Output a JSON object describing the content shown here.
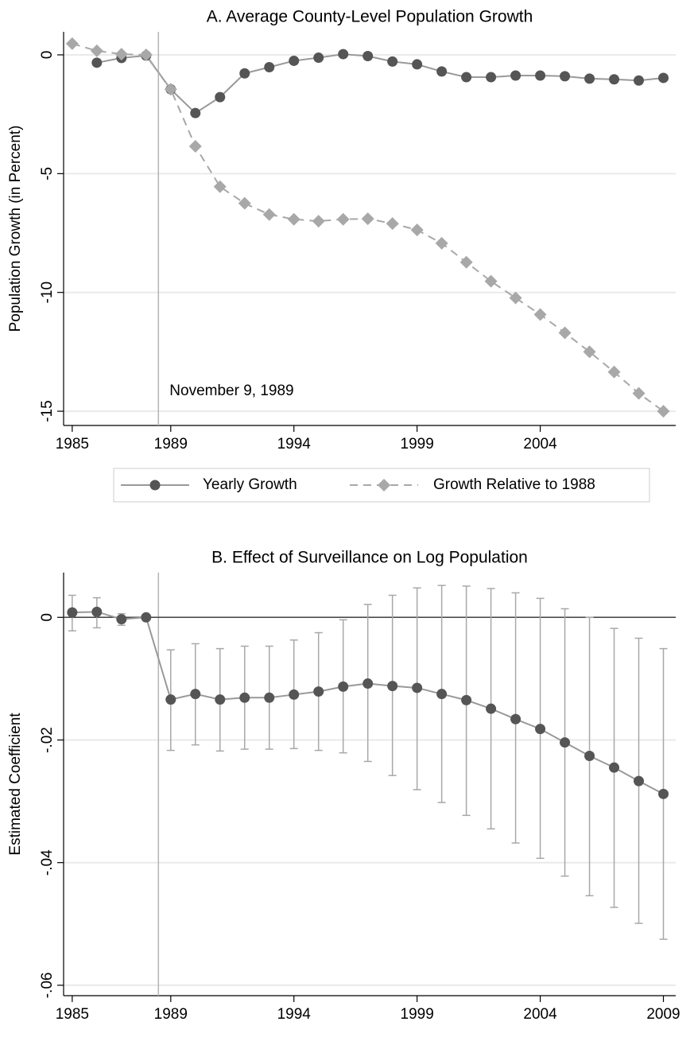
{
  "chart_data": [
    {
      "type": "line",
      "title": "A. Average County-Level Population Growth",
      "ylabel": "Population Growth (in Percent)",
      "x": [
        1985,
        1986,
        1987,
        1988,
        1989,
        1990,
        1991,
        1992,
        1993,
        1994,
        1995,
        1996,
        1997,
        1998,
        1999,
        2000,
        2001,
        2002,
        2003,
        2004,
        2005,
        2006,
        2007,
        2008,
        2009
      ],
      "series": [
        {
          "name": "Yearly Growth",
          "color": "#555555",
          "line_color": "#999999",
          "marker": "circle",
          "dash": false,
          "values": [
            null,
            -0.33,
            -0.13,
            -0.03,
            -1.45,
            -2.45,
            -1.78,
            -0.78,
            -0.52,
            -0.25,
            -0.12,
            0.03,
            -0.05,
            -0.28,
            -0.4,
            -0.7,
            -0.94,
            -0.94,
            -0.87,
            -0.87,
            -0.9,
            -1.0,
            -1.03,
            -1.08,
            -0.97
          ]
        },
        {
          "name": "Growth Relative to 1988",
          "color": "#a8a8a8",
          "line_color": "#a8a8a8",
          "marker": "diamond",
          "dash": true,
          "values": [
            0.47,
            0.17,
            0.03,
            0,
            -1.45,
            -3.85,
            -5.55,
            -6.25,
            -6.72,
            -6.92,
            -7.0,
            -6.92,
            -6.9,
            -7.1,
            -7.37,
            -7.93,
            -8.73,
            -9.53,
            -10.23,
            -10.93,
            -11.7,
            -12.5,
            -13.35,
            -14.25,
            -15.0
          ]
        }
      ],
      "xlim": [
        1984.65,
        2009.5
      ],
      "xticks": [
        1985,
        1989,
        1994,
        1999,
        2004
      ],
      "ylim": [
        -15.6,
        0.97
      ],
      "yticks": [
        0,
        -5,
        -10,
        -15
      ],
      "grid": true,
      "vline": 1988.5,
      "annotation": "November 9, 1989",
      "legend": "bottom"
    },
    {
      "type": "line",
      "title": "B. Effect of Surveillance on Log Population",
      "ylabel": "Estimated Coefficient",
      "x": [
        1985,
        1986,
        1987,
        1988,
        1989,
        1990,
        1991,
        1992,
        1993,
        1994,
        1995,
        1996,
        1997,
        1998,
        1999,
        2000,
        2001,
        2002,
        2003,
        2004,
        2005,
        2006,
        2007,
        2008,
        2009
      ],
      "series": [
        {
          "color": "#555555",
          "line_color": "#999999",
          "marker": "circle",
          "dash": false,
          "values": [
            0.0008,
            0.0009,
            -0.0003,
            0,
            -0.0134,
            -0.0125,
            -0.0134,
            -0.0131,
            -0.0131,
            -0.0126,
            -0.0121,
            -0.0113,
            -0.0108,
            -0.0112,
            -0.0115,
            -0.0125,
            -0.0135,
            -0.0149,
            -0.0166,
            -0.0182,
            -0.0204,
            -0.0226,
            -0.0245,
            -0.0267,
            -0.0288
          ],
          "ci_low": [
            -0.0022,
            -0.0017,
            -0.0013,
            null,
            -0.0217,
            -0.0208,
            -0.0218,
            -0.0215,
            -0.0215,
            -0.0214,
            -0.0217,
            -0.0221,
            -0.0235,
            -0.0258,
            -0.0281,
            -0.0302,
            -0.0323,
            -0.0345,
            -0.0368,
            -0.0393,
            -0.0422,
            -0.0454,
            -0.0473,
            -0.0499,
            -0.0525
          ],
          "ci_high": [
            0.0036,
            0.0032,
            0.0006,
            null,
            -0.0053,
            -0.0043,
            -0.0051,
            -0.0047,
            -0.0047,
            -0.0037,
            -0.0025,
            -0.0004,
            0.0021,
            0.0036,
            0.0048,
            0.0052,
            0.0051,
            0.0047,
            0.004,
            0.0031,
            0.0014,
            0,
            -0.0018,
            -0.0034,
            -0.0051
          ]
        }
      ],
      "xlim": [
        1984.65,
        2009.5
      ],
      "xticks": [
        1985,
        1989,
        1994,
        1999,
        2004,
        2009
      ],
      "ylim": [
        -0.0617,
        0.0073
      ],
      "yticks": [
        0,
        {
          "value": -0.02,
          "label": "-.02"
        },
        {
          "value": -0.04,
          "label": "-.04"
        },
        {
          "value": -0.06,
          "label": "-.06"
        }
      ],
      "grid": true,
      "vline": 1988.5,
      "hline": 0
    }
  ]
}
